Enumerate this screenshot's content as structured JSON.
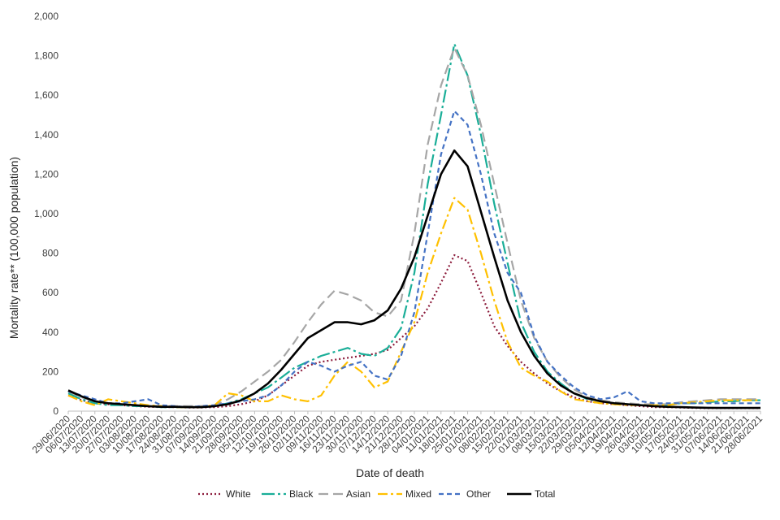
{
  "chart_data": {
    "type": "line",
    "title": "",
    "xlabel": "Date of death",
    "ylabel": "Mortality rate** (100,000 population)",
    "ylim": [
      0,
      2000
    ],
    "yticks": [
      0,
      200,
      400,
      600,
      800,
      1000,
      1200,
      1400,
      1600,
      1800,
      2000
    ],
    "ytick_labels": [
      "0",
      "200",
      "400",
      "600",
      "800",
      "1,000",
      "1,200",
      "1,400",
      "1,600",
      "1,800",
      "2,000"
    ],
    "categories": [
      "29/06/2020",
      "06/07/2020",
      "13/07/2020",
      "20/07/2020",
      "27/07/2020",
      "03/08/2020",
      "10/08/2020",
      "17/08/2020",
      "24/08/2020",
      "31/08/2020",
      "07/09/2020",
      "14/09/2020",
      "21/09/2020",
      "28/09/2020",
      "05/10/2020",
      "12/10/2020",
      "19/10/2020",
      "26/10/2020",
      "02/11/2020",
      "09/11/2020",
      "16/11/2020",
      "23/11/2020",
      "30/11/2020",
      "07/12/2020",
      "14/12/2020",
      "21/12/2020",
      "28/12/2020",
      "04/01/2021",
      "11/01/2021",
      "18/01/2021",
      "25/01/2021",
      "01/02/2021",
      "08/02/2021",
      "15/02/2021",
      "22/02/2021",
      "01/03/2021",
      "08/03/2021",
      "15/03/2021",
      "22/03/2021",
      "29/03/2021",
      "05/04/2021",
      "12/04/2021",
      "19/04/2021",
      "26/04/2021",
      "03/05/2021",
      "10/05/2021",
      "17/05/2021",
      "24/05/2021",
      "31/05/2021",
      "07/06/2021",
      "14/06/2021",
      "21/06/2021",
      "28/06/2021"
    ],
    "legend_position": "bottom",
    "series": [
      {
        "name": "White",
        "color": "#8B1A3A",
        "dash": "2,3",
        "values": [
          80,
          55,
          40,
          35,
          30,
          25,
          22,
          20,
          20,
          18,
          18,
          20,
          25,
          35,
          50,
          80,
          130,
          180,
          230,
          250,
          260,
          270,
          280,
          290,
          310,
          370,
          430,
          520,
          650,
          790,
          760,
          600,
          430,
          330,
          250,
          190,
          140,
          100,
          70,
          50,
          40,
          35,
          30,
          25,
          20,
          20,
          18,
          16,
          15,
          15,
          15,
          15,
          15
        ]
      },
      {
        "name": "Black",
        "color": "#1AAE98",
        "dash": "16,4,3,4",
        "values": [
          90,
          60,
          40,
          30,
          30,
          25,
          25,
          20,
          20,
          20,
          20,
          25,
          40,
          60,
          90,
          120,
          170,
          220,
          250,
          280,
          300,
          320,
          290,
          280,
          320,
          420,
          700,
          1150,
          1500,
          1860,
          1700,
          1400,
          1050,
          750,
          450,
          300,
          200,
          140,
          90,
          60,
          50,
          40,
          35,
          30,
          30,
          30,
          40,
          40,
          45,
          50,
          50,
          55,
          55
        ]
      },
      {
        "name": "Asian",
        "color": "#A6A6A6",
        "dash": "12,6",
        "values": [
          100,
          70,
          50,
          40,
          35,
          30,
          28,
          25,
          25,
          25,
          25,
          30,
          60,
          100,
          150,
          200,
          260,
          350,
          450,
          540,
          610,
          590,
          560,
          500,
          480,
          560,
          900,
          1350,
          1650,
          1840,
          1700,
          1450,
          1150,
          850,
          560,
          370,
          250,
          170,
          110,
          70,
          55,
          45,
          40,
          35,
          35,
          35,
          45,
          50,
          55,
          60,
          60,
          60,
          60
        ]
      },
      {
        "name": "Mixed",
        "color": "#FFC000",
        "dash": "12,4,3,4",
        "values": [
          80,
          50,
          30,
          60,
          50,
          40,
          30,
          25,
          20,
          20,
          20,
          30,
          90,
          80,
          50,
          50,
          80,
          60,
          50,
          80,
          180,
          250,
          200,
          120,
          150,
          300,
          450,
          700,
          900,
          1080,
          1020,
          800,
          560,
          350,
          220,
          180,
          150,
          100,
          60,
          50,
          40,
          35,
          30,
          30,
          30,
          30,
          40,
          45,
          50,
          55,
          55,
          55,
          55
        ]
      },
      {
        "name": "Other",
        "color": "#4472C4",
        "dash": "6,4",
        "values": [
          100,
          80,
          60,
          40,
          40,
          50,
          60,
          30,
          25,
          20,
          25,
          30,
          40,
          50,
          60,
          80,
          130,
          200,
          250,
          230,
          200,
          230,
          250,
          180,
          160,
          280,
          500,
          900,
          1300,
          1520,
          1450,
          1200,
          900,
          700,
          600,
          380,
          250,
          180,
          120,
          80,
          60,
          70,
          100,
          50,
          40,
          40,
          40,
          40,
          40,
          40,
          40,
          40,
          40
        ]
      },
      {
        "name": "Total",
        "color": "#000000",
        "dash": "",
        "values": [
          105,
          75,
          50,
          40,
          35,
          30,
          25,
          22,
          22,
          20,
          20,
          25,
          35,
          55,
          90,
          140,
          210,
          290,
          370,
          410,
          450,
          450,
          440,
          460,
          510,
          620,
          780,
          990,
          1200,
          1320,
          1240,
          1010,
          780,
          560,
          400,
          280,
          190,
          130,
          90,
          65,
          50,
          40,
          35,
          30,
          25,
          22,
          20,
          18,
          17,
          16,
          16,
          16,
          16
        ]
      }
    ]
  }
}
